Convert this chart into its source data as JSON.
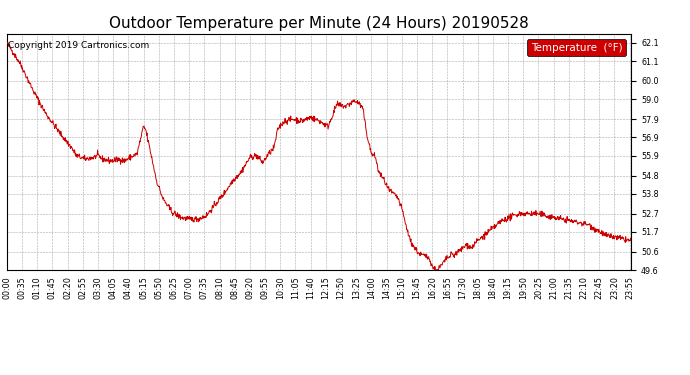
{
  "title": "Outdoor Temperature per Minute (24 Hours) 20190528",
  "copyright_text": "Copyright 2019 Cartronics.com",
  "legend_label": "Temperature  (°F)",
  "line_color": "#cc0000",
  "legend_bg": "#cc0000",
  "legend_text_color": "#ffffff",
  "background_color": "#ffffff",
  "grid_color": "#aaaaaa",
  "y_min": 49.6,
  "y_max": 62.6,
  "y_ticks": [
    49.6,
    50.6,
    51.7,
    52.7,
    53.8,
    54.8,
    55.9,
    56.9,
    57.9,
    59.0,
    60.0,
    61.1,
    62.1
  ],
  "title_fontsize": 11,
  "copyright_fontsize": 6.5,
  "tick_fontsize": 5.8,
  "legend_fontsize": 7.5
}
